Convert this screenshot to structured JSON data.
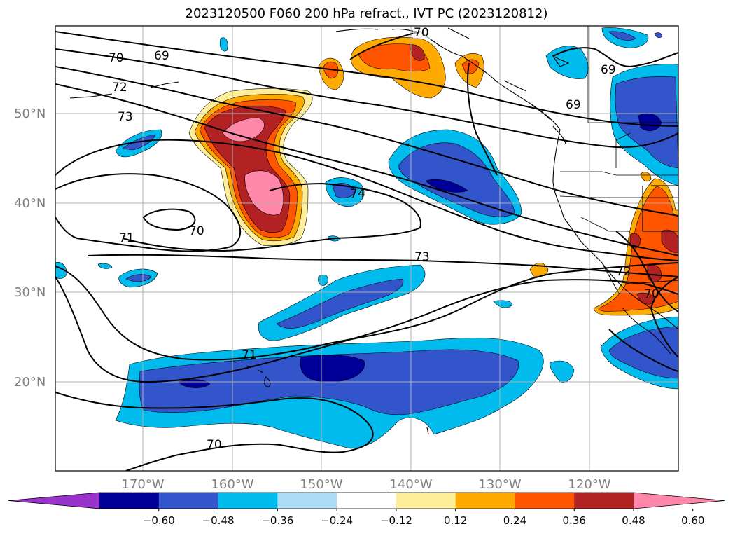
{
  "title": "2023120500 F060 200 hPa refract., IVT PC (2023120812)",
  "map": {
    "lat_labels": [
      "50°N",
      "40°N",
      "30°N",
      "20°N"
    ],
    "lon_labels": [
      "170°W",
      "160°W",
      "150°W",
      "140°W",
      "130°W",
      "120°W"
    ],
    "contour_labels": [
      "70",
      "69",
      "72",
      "73",
      "70",
      "71",
      "74",
      "73",
      "71",
      "70",
      "69",
      "69",
      "72",
      "70",
      "70"
    ]
  },
  "colorbar": {
    "colors": [
      "#9933cc",
      "#000099",
      "#3355cc",
      "#00bbee",
      "#aaddf5",
      "#ffffff",
      "#ffee99",
      "#ffaa00",
      "#ff5500",
      "#b22222",
      "#ff88aa"
    ],
    "ticks": [
      "−0.60",
      "−0.48",
      "−0.36",
      "−0.24",
      "−0.12",
      "0.12",
      "0.24",
      "0.36",
      "0.48",
      "0.60"
    ]
  }
}
